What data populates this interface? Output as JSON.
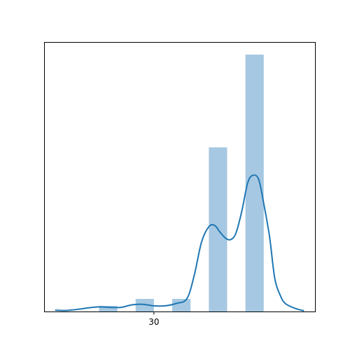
{
  "chart_data": {
    "type": "bar",
    "title": "",
    "xlabel": "",
    "ylabel": "",
    "grid": false,
    "legend": "none",
    "x_ticks": [
      {
        "value": 30,
        "label": "30"
      }
    ],
    "xlim": [
      15,
      52
    ],
    "ylim": [
      0,
      1
    ],
    "bins": [
      {
        "x0": 22.5,
        "x1": 25.0,
        "value": 0.022
      },
      {
        "x0": 27.5,
        "x1": 30.0,
        "value": 0.049
      },
      {
        "x0": 32.5,
        "x1": 35.0,
        "value": 0.049
      },
      {
        "x0": 37.5,
        "x1": 40.0,
        "value": 0.639
      },
      {
        "x0": 42.5,
        "x1": 45.0,
        "value": 1.0
      }
    ],
    "kde": {
      "x": [
        16.5,
        18,
        19.5,
        21,
        22.5,
        24,
        25.5,
        27,
        28.5,
        30,
        31.5,
        33,
        34.5,
        35.5,
        36.5,
        37.5,
        38.3,
        39,
        39.8,
        40.5,
        41.2,
        42,
        42.8,
        43.5,
        44.3,
        45,
        45.8,
        46.5,
        47.3,
        48,
        49.5,
        50.5
      ],
      "y": [
        0.005,
        0.004,
        0.008,
        0.014,
        0.018,
        0.016,
        0.016,
        0.026,
        0.028,
        0.022,
        0.022,
        0.031,
        0.05,
        0.14,
        0.27,
        0.33,
        0.335,
        0.31,
        0.285,
        0.28,
        0.305,
        0.39,
        0.5,
        0.53,
        0.515,
        0.42,
        0.29,
        0.13,
        0.06,
        0.03,
        0.01,
        0.003
      ]
    },
    "colors": {
      "bar": "#a6c8e2",
      "line": "#1f77b4",
      "axes": "#000000"
    }
  }
}
